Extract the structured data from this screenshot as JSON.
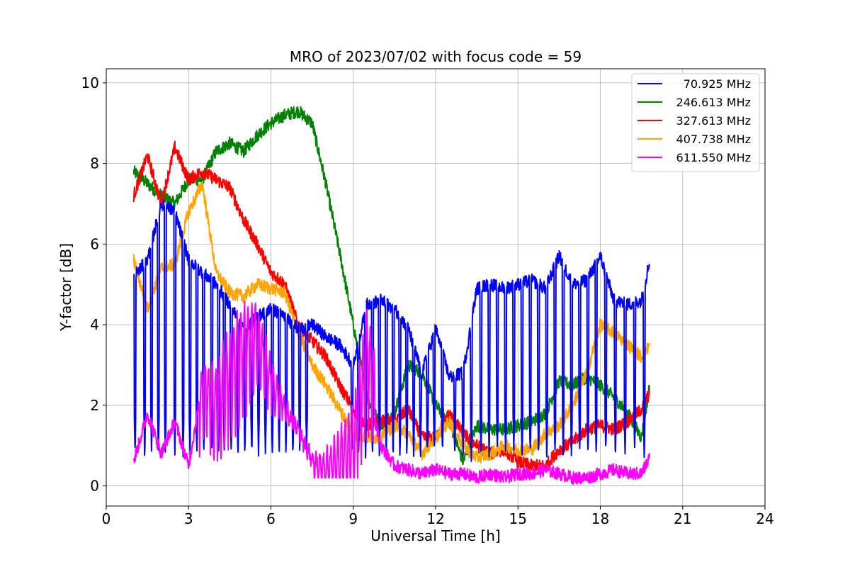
{
  "chart_data": {
    "type": "line",
    "title": "MRO of 2023/07/02 with focus code = 59",
    "xlabel": "Universal Time [h]",
    "ylabel": "Y-factor [dB]",
    "xlim": [
      0,
      24
    ],
    "ylim": [
      -0.5,
      10.35
    ],
    "xticks": [
      0,
      3,
      6,
      9,
      12,
      15,
      18,
      21,
      24
    ],
    "yticks": [
      0,
      2,
      4,
      6,
      8,
      10
    ],
    "grid": true,
    "legend_position": "top-right",
    "series": [
      {
        "name": "70.925 MHz",
        "color": "#0000ff",
        "x": [
          1.0,
          1.5,
          2.0,
          2.5,
          3.0,
          3.5,
          4.0,
          4.5,
          5.0,
          5.5,
          6.0,
          6.5,
          7.0,
          7.5,
          8.0,
          8.5,
          9.0,
          9.5,
          10.0,
          10.5,
          11.0,
          11.5,
          12.0,
          12.5,
          13.0,
          13.5,
          14.0,
          14.5,
          15.0,
          15.5,
          16.0,
          16.5,
          17.0,
          17.5,
          18.0,
          18.5,
          19.0,
          19.5,
          19.8
        ],
        "y": [
          5.2,
          5.6,
          7.0,
          6.8,
          5.6,
          5.3,
          5.0,
          4.5,
          3.9,
          4.2,
          4.4,
          4.2,
          3.9,
          4.0,
          3.7,
          3.5,
          3.0,
          4.5,
          4.6,
          4.4,
          3.9,
          2.8,
          3.9,
          2.7,
          2.8,
          4.9,
          5.0,
          4.9,
          5.0,
          5.1,
          4.9,
          5.7,
          5.0,
          5.1,
          5.7,
          4.6,
          4.5,
          4.6,
          5.6
        ],
        "dips": [
          1.05,
          1.4,
          1.65,
          1.9,
          2.15,
          2.5,
          2.8,
          3.05,
          3.3,
          3.55,
          3.85,
          4.1,
          4.3,
          4.55,
          4.8,
          5.05,
          5.3,
          5.55,
          5.8,
          6.05,
          6.3,
          6.55,
          6.8,
          7.05,
          7.3,
          8.95,
          9.2,
          9.45,
          9.7,
          9.95,
          10.2,
          10.45,
          10.7,
          10.95,
          11.2,
          11.45,
          11.7,
          11.95,
          12.25,
          12.7,
          13.0,
          13.3,
          13.65,
          13.95,
          14.25,
          14.55,
          14.85,
          15.15,
          15.45,
          15.75,
          16.05,
          16.35,
          16.65,
          16.95,
          17.25,
          17.55,
          17.85,
          18.2,
          18.55,
          18.9,
          19.25,
          19.6
        ]
      },
      {
        "name": "246.613 MHz",
        "color": "#008000",
        "x": [
          1.0,
          1.5,
          2.0,
          2.5,
          3.0,
          3.5,
          4.0,
          4.5,
          5.0,
          5.5,
          6.0,
          6.5,
          7.0,
          7.5,
          8.0,
          8.5,
          9.0,
          9.5,
          10.0,
          10.5,
          11.0,
          11.5,
          12.0,
          12.5,
          13.0,
          13.5,
          14.0,
          14.5,
          15.0,
          15.5,
          16.0,
          16.5,
          17.0,
          17.5,
          18.0,
          18.5,
          19.0,
          19.5,
          19.8
        ],
        "y": [
          7.8,
          7.5,
          7.2,
          7.0,
          7.6,
          7.6,
          8.3,
          8.5,
          8.3,
          8.7,
          9.0,
          9.2,
          9.3,
          9.0,
          7.5,
          5.8,
          4.0,
          2.2,
          1.5,
          1.8,
          3.0,
          2.8,
          2.0,
          1.6,
          0.6,
          1.5,
          1.4,
          1.4,
          1.5,
          1.6,
          1.8,
          2.6,
          2.5,
          2.7,
          2.5,
          2.2,
          1.8,
          1.2,
          2.5
        ]
      },
      {
        "name": "327.613 MHz",
        "color": "#ff0000",
        "x": [
          1.0,
          1.5,
          2.0,
          2.5,
          3.0,
          3.5,
          4.0,
          4.5,
          5.0,
          5.5,
          6.0,
          6.5,
          7.0,
          7.5,
          8.0,
          8.5,
          9.0,
          9.5,
          10.0,
          10.5,
          11.0,
          11.5,
          12.0,
          12.5,
          13.0,
          13.5,
          14.0,
          14.5,
          15.0,
          15.5,
          16.0,
          16.5,
          17.0,
          17.5,
          18.0,
          18.5,
          19.0,
          19.5,
          19.8
        ],
        "y": [
          7.2,
          8.2,
          7.0,
          8.4,
          7.6,
          7.8,
          7.6,
          7.4,
          6.6,
          6.0,
          5.3,
          5.0,
          4.0,
          3.6,
          3.2,
          2.5,
          1.9,
          1.5,
          1.6,
          1.6,
          1.9,
          1.2,
          1.2,
          1.8,
          1.3,
          1.0,
          0.8,
          0.9,
          0.6,
          0.5,
          0.5,
          0.9,
          1.1,
          1.4,
          1.5,
          1.4,
          1.6,
          1.9,
          2.3
        ]
      },
      {
        "name": "407.738 MHz",
        "color": "#ffa500",
        "x": [
          1.0,
          1.5,
          2.0,
          2.5,
          3.0,
          3.5,
          4.0,
          4.5,
          5.0,
          5.5,
          6.0,
          6.5,
          7.0,
          7.5,
          8.0,
          8.5,
          9.0,
          9.5,
          10.0,
          10.5,
          11.0,
          11.5,
          12.0,
          12.5,
          13.0,
          13.5,
          14.0,
          14.5,
          15.0,
          15.5,
          16.0,
          16.5,
          17.0,
          17.5,
          18.0,
          18.5,
          19.0,
          19.5,
          19.8
        ],
        "y": [
          5.6,
          4.4,
          5.4,
          5.5,
          6.8,
          7.5,
          5.3,
          4.8,
          4.7,
          5.0,
          4.9,
          4.8,
          3.8,
          3.0,
          2.5,
          1.9,
          1.3,
          1.2,
          1.2,
          1.5,
          1.3,
          0.8,
          1.2,
          1.6,
          1.0,
          0.7,
          0.8,
          1.0,
          0.9,
          0.9,
          1.3,
          1.5,
          2.0,
          2.8,
          4.0,
          3.8,
          3.5,
          3.2,
          3.5
        ]
      },
      {
        "name": "611.550 MHz",
        "color": "#ff00ff",
        "x": [
          1.0,
          1.5,
          2.0,
          2.5,
          3.0,
          3.5,
          4.0,
          4.5,
          5.0,
          5.5,
          6.0,
          6.5,
          7.0,
          7.5,
          8.0,
          8.5,
          9.0,
          9.5,
          10.0,
          10.5,
          11.0,
          11.5,
          12.0,
          12.5,
          13.0,
          13.5,
          14.0,
          14.5,
          15.0,
          15.5,
          16.0,
          16.5,
          17.0,
          17.5,
          18.0,
          18.5,
          19.0,
          19.5,
          19.8
        ],
        "y": [
          0.6,
          1.8,
          0.8,
          1.6,
          0.5,
          2.5,
          1.5,
          2.0,
          2.8,
          3.5,
          3.0,
          2.8,
          2.5,
          1.5,
          0.8,
          0.4,
          0.3,
          2.5,
          1.0,
          0.5,
          0.4,
          0.3,
          0.4,
          0.3,
          0.3,
          0.2,
          0.3,
          0.2,
          0.3,
          0.3,
          0.4,
          0.3,
          0.2,
          0.2,
          0.3,
          0.4,
          0.3,
          0.3,
          0.7
        ],
        "oscillation_window": [
          3.4,
          9.8
        ]
      }
    ]
  }
}
